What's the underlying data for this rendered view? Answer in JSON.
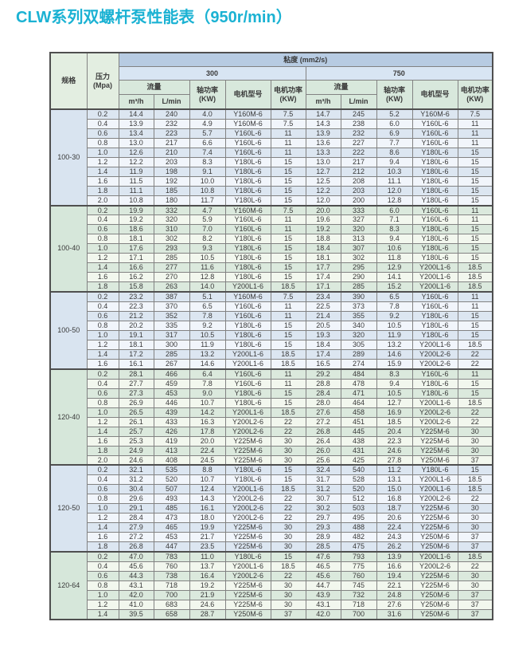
{
  "page": {
    "title": "CLW系列双螺杆泵性能表（950r/min）"
  },
  "colors": {
    "title": "#1bb2d3",
    "header_viscosity_bg": "#b7cbe2",
    "header_value_bg": "#d8e5f3",
    "header_green_bg": "#d8e8dc",
    "blue_row_a": "#dce6f1",
    "blue_row_b": "#f1f5fb",
    "green_row_a": "#dbe9dd",
    "green_row_b": "#f2f7ee",
    "border": "#4f4f4f"
  },
  "table": {
    "headers": {
      "spec": "规格",
      "pressure": [
        "压力",
        "(Mpa)"
      ],
      "viscosity": "粘度 (mm2/s)",
      "viscosity_300": "300",
      "viscosity_750": "750",
      "flow": "流量",
      "flow_m3h": "m³/h",
      "flow_lmin": "L/min",
      "shaft_power": [
        "轴功率",
        "(KW)"
      ],
      "motor_model": "电机型号",
      "motor_power": [
        "电机功率",
        "(KW)"
      ]
    },
    "groups": [
      {
        "spec": "100-30",
        "tint": "blue",
        "rows": [
          {
            "p": "0.2",
            "v300": [
              "14.4",
              "240",
              "4.0",
              "Y160M-6",
              "7.5"
            ],
            "v750": [
              "14.7",
              "245",
              "5.2",
              "Y160M-6",
              "7.5"
            ]
          },
          {
            "p": "0.4",
            "v300": [
              "13.9",
              "232",
              "4.9",
              "Y160M-6",
              "7.5"
            ],
            "v750": [
              "14.3",
              "238",
              "6.0",
              "Y160L-6",
              "11"
            ]
          },
          {
            "p": "0.6",
            "v300": [
              "13.4",
              "223",
              "5.7",
              "Y160L-6",
              "11"
            ],
            "v750": [
              "13.9",
              "232",
              "6.9",
              "Y160L-6",
              "11"
            ]
          },
          {
            "p": "0.8",
            "v300": [
              "13.0",
              "217",
              "6.6",
              "Y160L-6",
              "11"
            ],
            "v750": [
              "13.6",
              "227",
              "7.7",
              "Y160L-6",
              "11"
            ]
          },
          {
            "p": "1.0",
            "v300": [
              "12.6",
              "210",
              "7.4",
              "Y160L-6",
              "11"
            ],
            "v750": [
              "13.3",
              "222",
              "8.6",
              "Y180L-6",
              "15"
            ]
          },
          {
            "p": "1.2",
            "v300": [
              "12.2",
              "203",
              "8.3",
              "Y180L-6",
              "15"
            ],
            "v750": [
              "13.0",
              "217",
              "9.4",
              "Y180L-6",
              "15"
            ]
          },
          {
            "p": "1.4",
            "v300": [
              "11.9",
              "198",
              "9.1",
              "Y180L-6",
              "15"
            ],
            "v750": [
              "12.7",
              "212",
              "10.3",
              "Y180L-6",
              "15"
            ]
          },
          {
            "p": "1.6",
            "v300": [
              "11.5",
              "192",
              "10.0",
              "Y180L-6",
              "15"
            ],
            "v750": [
              "12.5",
              "208",
              "11.1",
              "Y180L-6",
              "15"
            ]
          },
          {
            "p": "1.8",
            "v300": [
              "11.1",
              "185",
              "10.8",
              "Y180L-6",
              "15"
            ],
            "v750": [
              "12.2",
              "203",
              "12.0",
              "Y180L-6",
              "15"
            ]
          },
          {
            "p": "2.0",
            "v300": [
              "10.8",
              "180",
              "11.7",
              "Y180L-6",
              "15"
            ],
            "v750": [
              "12.0",
              "200",
              "12.8",
              "Y180L-6",
              "15"
            ]
          }
        ]
      },
      {
        "spec": "100-40",
        "tint": "green",
        "rows": [
          {
            "p": "0.2",
            "v300": [
              "19.9",
              "332",
              "4.7",
              "Y160M-6",
              "7.5"
            ],
            "v750": [
              "20.0",
              "333",
              "6.0",
              "Y160L-6",
              "11"
            ]
          },
          {
            "p": "0.4",
            "v300": [
              "19.2",
              "320",
              "5.9",
              "Y160L-6",
              "11"
            ],
            "v750": [
              "19.6",
              "327",
              "7.1",
              "Y160L-6",
              "11"
            ]
          },
          {
            "p": "0.6",
            "v300": [
              "18.6",
              "310",
              "7.0",
              "Y160L-6",
              "11"
            ],
            "v750": [
              "19.2",
              "320",
              "8.3",
              "Y180L-6",
              "15"
            ]
          },
          {
            "p": "0.8",
            "v300": [
              "18.1",
              "302",
              "8.2",
              "Y180L-6",
              "15"
            ],
            "v750": [
              "18.8",
              "313",
              "9.4",
              "Y180L-6",
              "15"
            ]
          },
          {
            "p": "1.0",
            "v300": [
              "17.6",
              "293",
              "9.3",
              "Y180L-6",
              "15"
            ],
            "v750": [
              "18.4",
              "307",
              "10.6",
              "Y180L-6",
              "15"
            ]
          },
          {
            "p": "1.2",
            "v300": [
              "17.1",
              "285",
              "10.5",
              "Y180L-6",
              "15"
            ],
            "v750": [
              "18.1",
              "302",
              "11.8",
              "Y180L-6",
              "15"
            ]
          },
          {
            "p": "1.4",
            "v300": [
              "16.6",
              "277",
              "11.6",
              "Y180L-6",
              "15"
            ],
            "v750": [
              "17.7",
              "295",
              "12.9",
              "Y200L1-6",
              "18.5"
            ]
          },
          {
            "p": "1.6",
            "v300": [
              "16.2",
              "270",
              "12.8",
              "Y180L-6",
              "15"
            ],
            "v750": [
              "17.4",
              "290",
              "14.1",
              "Y200L1-6",
              "18.5"
            ]
          },
          {
            "p": "1.8",
            "v300": [
              "15.8",
              "263",
              "14.0",
              "Y200L1-6",
              "18.5"
            ],
            "v750": [
              "17.1",
              "285",
              "15.2",
              "Y200L1-6",
              "18.5"
            ]
          }
        ]
      },
      {
        "spec": "100-50",
        "tint": "blue",
        "rows": [
          {
            "p": "0.2",
            "v300": [
              "23.2",
              "387",
              "5.1",
              "Y160M-6",
              "7.5"
            ],
            "v750": [
              "23.4",
              "390",
              "6.5",
              "Y160L-6",
              "11"
            ]
          },
          {
            "p": "0.4",
            "v300": [
              "22.3",
              "370",
              "6.5",
              "Y160L-6",
              "11"
            ],
            "v750": [
              "22.5",
              "373",
              "7.8",
              "Y160L-6",
              "11"
            ]
          },
          {
            "p": "0.6",
            "v300": [
              "21.2",
              "352",
              "7.8",
              "Y160L-6",
              "11"
            ],
            "v750": [
              "21.4",
              "355",
              "9.2",
              "Y180L-6",
              "15"
            ]
          },
          {
            "p": "0.8",
            "v300": [
              "20.2",
              "335",
              "9.2",
              "Y180L-6",
              "15"
            ],
            "v750": [
              "20.5",
              "340",
              "10.5",
              "Y180L-6",
              "15"
            ]
          },
          {
            "p": "1.0",
            "v300": [
              "19.1",
              "317",
              "10.5",
              "Y180L-6",
              "15"
            ],
            "v750": [
              "19.3",
              "320",
              "11.9",
              "Y180L-6",
              "15"
            ]
          },
          {
            "p": "1.2",
            "v300": [
              "18.1",
              "300",
              "11.9",
              "Y180L-6",
              "15"
            ],
            "v750": [
              "18.4",
              "305",
              "13.2",
              "Y200L1-6",
              "18.5"
            ]
          },
          {
            "p": "1.4",
            "v300": [
              "17.2",
              "285",
              "13.2",
              "Y200L1-6",
              "18.5"
            ],
            "v750": [
              "17.4",
              "289",
              "14.6",
              "Y200L2-6",
              "22"
            ]
          },
          {
            "p": "1.6",
            "v300": [
              "16.1",
              "267",
              "14.6",
              "Y200L1-6",
              "18.5"
            ],
            "v750": [
              "16.5",
              "274",
              "15.9",
              "Y200L2-6",
              "22"
            ]
          }
        ]
      },
      {
        "spec": "120-40",
        "tint": "green",
        "rows": [
          {
            "p": "0.2",
            "v300": [
              "28.1",
              "466",
              "6.4",
              "Y160L-6",
              "11"
            ],
            "v750": [
              "29.2",
              "484",
              "8.3",
              "Y160L-6",
              "11"
            ]
          },
          {
            "p": "0.4",
            "v300": [
              "27.7",
              "459",
              "7.8",
              "Y160L-6",
              "11"
            ],
            "v750": [
              "28.8",
              "478",
              "9.4",
              "Y180L-6",
              "15"
            ]
          },
          {
            "p": "0.6",
            "v300": [
              "27.3",
              "453",
              "9.0",
              "Y180L-6",
              "15"
            ],
            "v750": [
              "28.4",
              "471",
              "10.5",
              "Y180L-6",
              "15"
            ]
          },
          {
            "p": "0.8",
            "v300": [
              "26.9",
              "446",
              "10.7",
              "Y180L-6",
              "15"
            ],
            "v750": [
              "28.0",
              "464",
              "12.7",
              "Y200L1-6",
              "18.5"
            ]
          },
          {
            "p": "1.0",
            "v300": [
              "26.5",
              "439",
              "14.2",
              "Y200L1-6",
              "18.5"
            ],
            "v750": [
              "27.6",
              "458",
              "16.9",
              "Y200L2-6",
              "22"
            ]
          },
          {
            "p": "1.2",
            "v300": [
              "26.1",
              "433",
              "16.3",
              "Y200L2-6",
              "22"
            ],
            "v750": [
              "27.2",
              "451",
              "18.5",
              "Y200L2-6",
              "22"
            ]
          },
          {
            "p": "1.4",
            "v300": [
              "25.7",
              "426",
              "17.8",
              "Y200L2-6",
              "22"
            ],
            "v750": [
              "26.8",
              "445",
              "20.4",
              "Y225M-6",
              "30"
            ]
          },
          {
            "p": "1.6",
            "v300": [
              "25.3",
              "419",
              "20.0",
              "Y225M-6",
              "30"
            ],
            "v750": [
              "26.4",
              "438",
              "22.3",
              "Y225M-6",
              "30"
            ]
          },
          {
            "p": "1.8",
            "v300": [
              "24.9",
              "413",
              "22.4",
              "Y225M-6",
              "30"
            ],
            "v750": [
              "26.0",
              "431",
              "24.6",
              "Y225M-6",
              "30"
            ]
          },
          {
            "p": "2.0",
            "v300": [
              "24.6",
              "408",
              "24.5",
              "Y225M-6",
              "30"
            ],
            "v750": [
              "25.6",
              "425",
              "27.8",
              "Y250M-6",
              "37"
            ]
          }
        ]
      },
      {
        "spec": "120-50",
        "tint": "blue",
        "rows": [
          {
            "p": "0.2",
            "v300": [
              "32.1",
              "535",
              "8.8",
              "Y180L-6",
              "15"
            ],
            "v750": [
              "32.4",
              "540",
              "11.2",
              "Y180L-6",
              "15"
            ]
          },
          {
            "p": "0.4",
            "v300": [
              "31.2",
              "520",
              "10.7",
              "Y180L-6",
              "15"
            ],
            "v750": [
              "31.7",
              "528",
              "13.1",
              "Y200L1-6",
              "18.5"
            ]
          },
          {
            "p": "0.6",
            "v300": [
              "30.4",
              "507",
              "12.4",
              "Y200L1-6",
              "18.5"
            ],
            "v750": [
              "31.2",
              "520",
              "15.0",
              "Y200L1-6",
              "18.5"
            ]
          },
          {
            "p": "0.8",
            "v300": [
              "29.6",
              "493",
              "14.3",
              "Y200L2-6",
              "22"
            ],
            "v750": [
              "30.7",
              "512",
              "16.8",
              "Y200L2-6",
              "22"
            ]
          },
          {
            "p": "1.0",
            "v300": [
              "29.1",
              "485",
              "16.1",
              "Y200L2-6",
              "22"
            ],
            "v750": [
              "30.2",
              "503",
              "18.7",
              "Y225M-6",
              "30"
            ]
          },
          {
            "p": "1.2",
            "v300": [
              "28.4",
              "473",
              "18.0",
              "Y200L2-6",
              "22"
            ],
            "v750": [
              "29.7",
              "495",
              "20.6",
              "Y225M-6",
              "30"
            ]
          },
          {
            "p": "1.4",
            "v300": [
              "27.9",
              "465",
              "19.9",
              "Y225M-6",
              "30"
            ],
            "v750": [
              "29.3",
              "488",
              "22.4",
              "Y225M-6",
              "30"
            ]
          },
          {
            "p": "1.6",
            "v300": [
              "27.2",
              "453",
              "21.7",
              "Y225M-6",
              "30"
            ],
            "v750": [
              "28.9",
              "482",
              "24.3",
              "Y250M-6",
              "37"
            ]
          },
          {
            "p": "1.8",
            "v300": [
              "26.8",
              "447",
              "23.5",
              "Y225M-6",
              "30"
            ],
            "v750": [
              "28.5",
              "475",
              "26.2",
              "Y250M-6",
              "37"
            ]
          }
        ]
      },
      {
        "spec": "120-64",
        "tint": "green",
        "rows": [
          {
            "p": "0.2",
            "v300": [
              "47.0",
              "783",
              "11.0",
              "Y180L-6",
              "15"
            ],
            "v750": [
              "47.6",
              "793",
              "13.9",
              "Y200L1-6",
              "18.5"
            ]
          },
          {
            "p": "0.4",
            "v300": [
              "45.6",
              "760",
              "13.7",
              "Y200L1-6",
              "18.5"
            ],
            "v750": [
              "46.5",
              "775",
              "16.6",
              "Y200L2-6",
              "22"
            ]
          },
          {
            "p": "0.6",
            "v300": [
              "44.3",
              "738",
              "16.4",
              "Y200L2-6",
              "22"
            ],
            "v750": [
              "45.6",
              "760",
              "19.4",
              "Y225M-6",
              "30"
            ]
          },
          {
            "p": "0.8",
            "v300": [
              "43.1",
              "718",
              "19.2",
              "Y225M-6",
              "30"
            ],
            "v750": [
              "44.7",
              "745",
              "22.1",
              "Y225M-6",
              "30"
            ]
          },
          {
            "p": "1.0",
            "v300": [
              "42.0",
              "700",
              "21.9",
              "Y225M-6",
              "30"
            ],
            "v750": [
              "43.9",
              "732",
              "24.8",
              "Y250M-6",
              "37"
            ]
          },
          {
            "p": "1.2",
            "v300": [
              "41.0",
              "683",
              "24.6",
              "Y225M-6",
              "30"
            ],
            "v750": [
              "43.1",
              "718",
              "27.6",
              "Y250M-6",
              "37"
            ]
          },
          {
            "p": "1.4",
            "v300": [
              "39.5",
              "658",
              "28.7",
              "Y250M-6",
              "37"
            ],
            "v750": [
              "42.0",
              "700",
              "31.6",
              "Y250M-6",
              "37"
            ]
          }
        ]
      }
    ]
  }
}
